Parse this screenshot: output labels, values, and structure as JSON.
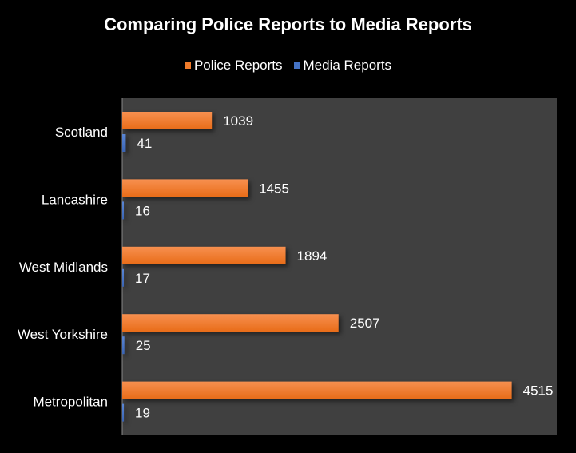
{
  "chart_data": {
    "type": "bar",
    "orientation": "horizontal",
    "title": "Comparing Police Reports to Media Reports",
    "categories": [
      "Scotland",
      "Lancashire",
      "West Midlands",
      "West Yorkshire",
      "Metropolitan"
    ],
    "series": [
      {
        "name": "Police Reports",
        "values": [
          1039,
          1455,
          1894,
          2507,
          4515
        ],
        "color": "#f07b2a"
      },
      {
        "name": "Media Reports",
        "values": [
          41,
          16,
          17,
          25,
          19
        ],
        "color": "#4472c4"
      }
    ],
    "xlim": [
      0,
      5000
    ],
    "legend": "top",
    "grid": false,
    "xlabel": "",
    "ylabel": ""
  }
}
